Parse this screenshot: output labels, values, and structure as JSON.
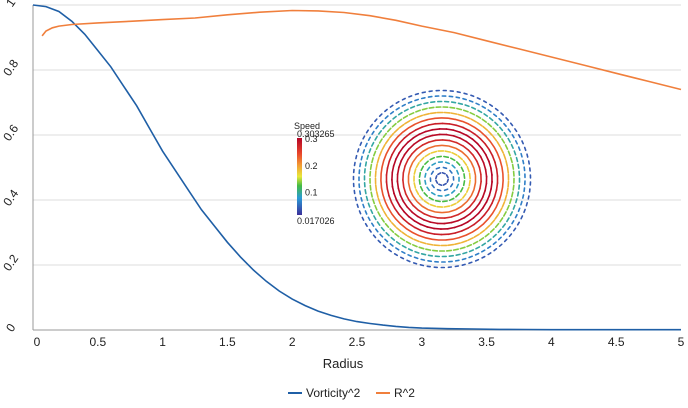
{
  "chart_data": {
    "type": "line",
    "title": "",
    "xlabel": "Radius",
    "ylabel": "",
    "xlim": [
      0,
      5
    ],
    "ylim": [
      0,
      1
    ],
    "x_ticks": [
      "0",
      "0.5",
      "1",
      "1.5",
      "2",
      "2.5",
      "3",
      "3.5",
      "4",
      "4.5",
      "5"
    ],
    "y_ticks": [
      "0",
      "0.2",
      "0.4",
      "0.6",
      "0.8",
      "1"
    ],
    "grid": true,
    "legend_position": "bottom",
    "series": [
      {
        "name": "Vorticity^2",
        "color": "#1f5fa6",
        "x": [
          0,
          0.1,
          0.2,
          0.3,
          0.4,
          0.5,
          0.6,
          0.7,
          0.8,
          0.9,
          1.0,
          1.1,
          1.2,
          1.3,
          1.4,
          1.5,
          1.6,
          1.7,
          1.8,
          1.9,
          2.0,
          2.1,
          2.2,
          2.3,
          2.4,
          2.5,
          2.6,
          2.7,
          2.8,
          2.9,
          3.0,
          3.2,
          3.4,
          3.6,
          3.8,
          4.0,
          4.5,
          5.0
        ],
        "values": [
          1.0,
          0.995,
          0.98,
          0.95,
          0.91,
          0.86,
          0.81,
          0.75,
          0.69,
          0.62,
          0.55,
          0.49,
          0.43,
          0.37,
          0.32,
          0.27,
          0.225,
          0.185,
          0.15,
          0.12,
          0.095,
          0.075,
          0.058,
          0.045,
          0.034,
          0.026,
          0.02,
          0.015,
          0.011,
          0.008,
          0.006,
          0.004,
          0.003,
          0.002,
          0.0015,
          0.001,
          0.0008,
          0.0008
        ]
      },
      {
        "name": "R^2",
        "color": "#f07f3c",
        "x": [
          0.07,
          0.1,
          0.15,
          0.2,
          0.3,
          0.5,
          0.75,
          1.0,
          1.25,
          1.5,
          1.75,
          2.0,
          2.2,
          2.4,
          2.6,
          2.8,
          3.0,
          3.25,
          3.5,
          3.75,
          4.0,
          4.25,
          4.5,
          4.75,
          5.0
        ],
        "values": [
          0.905,
          0.92,
          0.93,
          0.935,
          0.94,
          0.945,
          0.95,
          0.955,
          0.96,
          0.97,
          0.978,
          0.983,
          0.982,
          0.977,
          0.967,
          0.953,
          0.935,
          0.915,
          0.89,
          0.865,
          0.84,
          0.815,
          0.79,
          0.765,
          0.74
        ]
      }
    ]
  },
  "inset": {
    "colorbar_title": "Speed",
    "colorbar_max": "0.303265",
    "colorbar_min": "0.017026",
    "colorbar_ticks": [
      {
        "label": "0.3",
        "value": 0.3
      },
      {
        "label": "0.2",
        "value": 0.2
      },
      {
        "label": "0.1",
        "value": 0.1
      }
    ],
    "range": [
      0.017026,
      0.303265
    ]
  }
}
